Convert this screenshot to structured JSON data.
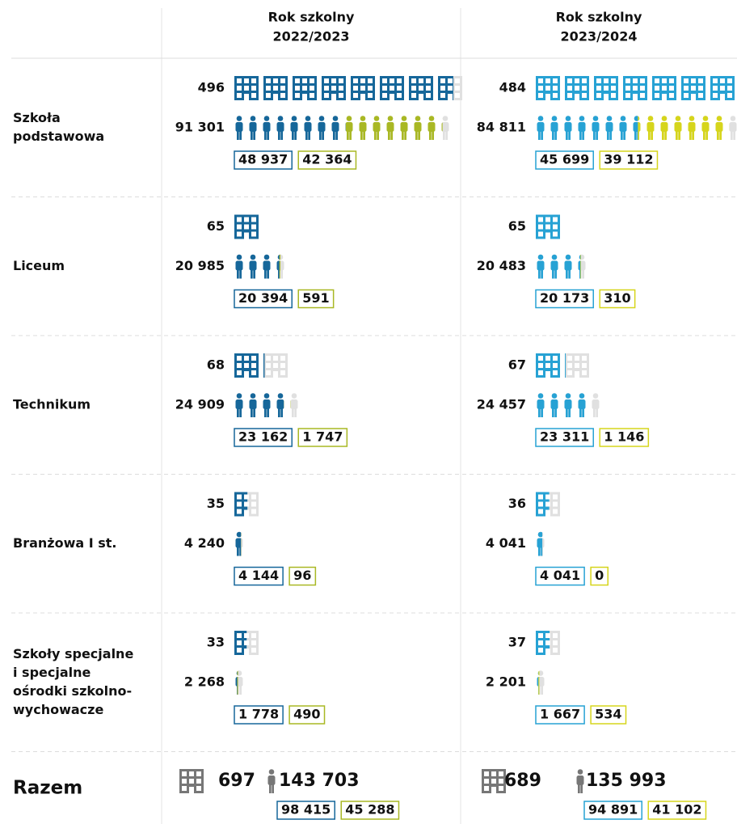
{
  "header": {
    "columns": [
      [
        "Rok szkolny",
        "2022/2023"
      ],
      [
        "Rok szkolny",
        "2023/2024"
      ]
    ]
  },
  "rows": [
    {
      "label": [
        "Szkoła",
        "podstawowa"
      ],
      "years": [
        {
          "schools": {
            "value": 496,
            "label": "496"
          },
          "students": {
            "value": 91301,
            "label": "91 301"
          },
          "split": [
            {
              "value": 48937,
              "label": "48 937"
            },
            {
              "value": 42364,
              "label": "42 364"
            }
          ]
        },
        {
          "schools": {
            "value": 484,
            "label": "484"
          },
          "students": {
            "value": 84811,
            "label": "84 811"
          },
          "split": [
            {
              "value": 45699,
              "label": "45 699"
            },
            {
              "value": 39112,
              "label": "39 112"
            }
          ]
        }
      ]
    },
    {
      "label": [
        "Liceum"
      ],
      "years": [
        {
          "schools": {
            "value": 65,
            "label": "65"
          },
          "students": {
            "value": 20985,
            "label": "20 985"
          },
          "split": [
            {
              "value": 20394,
              "label": "20 394"
            },
            {
              "value": 591,
              "label": "591"
            }
          ]
        },
        {
          "schools": {
            "value": 65,
            "label": "65"
          },
          "students": {
            "value": 20483,
            "label": "20 483"
          },
          "split": [
            {
              "value": 20173,
              "label": "20 173"
            },
            {
              "value": 310,
              "label": "310"
            }
          ]
        }
      ]
    },
    {
      "label": [
        "Technikum"
      ],
      "years": [
        {
          "schools": {
            "value": 68,
            "label": "68"
          },
          "students": {
            "value": 24909,
            "label": "24 909"
          },
          "split": [
            {
              "value": 23162,
              "label": "23 162"
            },
            {
              "value": 1747,
              "label": "1 747"
            }
          ]
        },
        {
          "schools": {
            "value": 67,
            "label": "67"
          },
          "students": {
            "value": 24457,
            "label": "24 457"
          },
          "split": [
            {
              "value": 23311,
              "label": "23 311"
            },
            {
              "value": 1146,
              "label": "1 146"
            }
          ]
        }
      ]
    },
    {
      "label": [
        "Branżowa I st."
      ],
      "years": [
        {
          "schools": {
            "value": 35,
            "label": "35"
          },
          "students": {
            "value": 4240,
            "label": "4 240"
          },
          "split": [
            {
              "value": 4144,
              "label": "4 144"
            },
            {
              "value": 96,
              "label": "96"
            }
          ]
        },
        {
          "schools": {
            "value": 36,
            "label": "36"
          },
          "students": {
            "value": 4041,
            "label": "4 041"
          },
          "split": [
            {
              "value": 4041,
              "label": "4 041"
            },
            {
              "value": 0,
              "label": "0"
            }
          ]
        }
      ]
    },
    {
      "label": [
        "Szkoły specjalne",
        "i specjalne",
        "ośrodki szkolno-",
        "wychowacze"
      ],
      "years": [
        {
          "schools": {
            "value": 33,
            "label": "33"
          },
          "students": {
            "value": 2268,
            "label": "2 268"
          },
          "split": [
            {
              "value": 1778,
              "label": "1 778"
            },
            {
              "value": 490,
              "label": "490"
            }
          ]
        },
        {
          "schools": {
            "value": 37,
            "label": "37"
          },
          "students": {
            "value": 2201,
            "label": "2 201"
          },
          "split": [
            {
              "value": 1667,
              "label": "1 667"
            },
            {
              "value": 534,
              "label": "534"
            }
          ]
        }
      ]
    }
  ],
  "total": {
    "label": "Razem",
    "years": [
      {
        "schools": {
          "value": 697,
          "label": "697"
        },
        "students": {
          "value": 143703,
          "label": "143 703"
        },
        "split": [
          {
            "value": 98415,
            "label": "98 415"
          },
          {
            "value": 45288,
            "label": "45 288"
          }
        ]
      },
      {
        "schools": {
          "value": 689,
          "label": "689"
        },
        "students": {
          "value": 135993,
          "label": "135 993"
        },
        "split": [
          {
            "value": 94891,
            "label": "94 891"
          },
          {
            "value": 41102,
            "label": "41 102"
          }
        ]
      }
    ]
  }
}
